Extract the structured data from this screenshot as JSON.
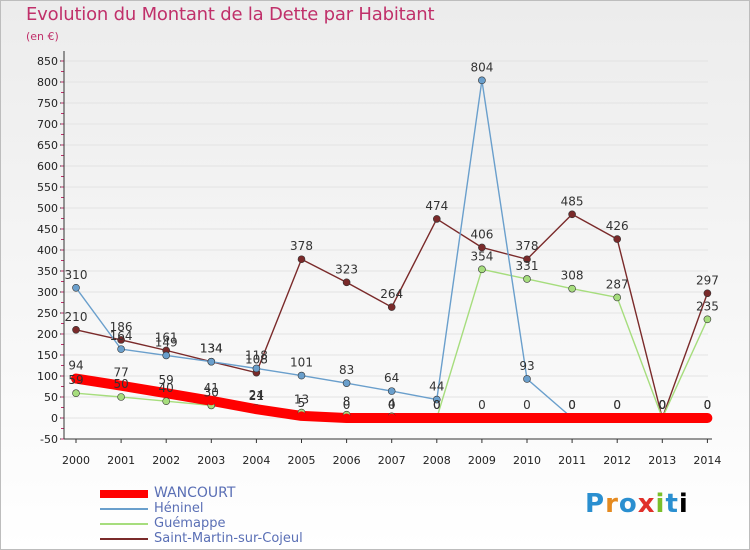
{
  "header": {
    "title": "Evolution du Montant de la Dette par Habitant",
    "unit": "(en €)"
  },
  "logo": {
    "letters": [
      "P",
      "r",
      "o",
      "x",
      "i",
      "t",
      "i"
    ]
  },
  "colors": {
    "title": "#c0306a",
    "WANCOURT": "#ff0000",
    "Héninel": "#6a9fcc",
    "Guémappe": "#a6dd7d",
    "Saint-Martin-sur-Cojeul": "#7a2a2a",
    "axis": "#333333",
    "grid": "#e3e3e3"
  },
  "chart_data": {
    "type": "line",
    "title": "Evolution du Montant de la Dette par Habitant",
    "subtitle": "(en €)",
    "xlabel": "",
    "ylabel": "",
    "ylim": [
      -50,
      850
    ],
    "ytick_step": 50,
    "x": [
      "2000",
      "2001",
      "2002",
      "2003",
      "2004",
      "2005",
      "2006",
      "2007",
      "2008",
      "2009",
      "2010",
      "2011",
      "2012",
      "2013",
      "2014"
    ],
    "legend_position": "bottom-left",
    "series": [
      {
        "name": "WANCOURT",
        "color": "#ff0000",
        "values": [
          94,
          77,
          59,
          41,
          21,
          5,
          0,
          0,
          0,
          0,
          0,
          0,
          0,
          0,
          0
        ],
        "labels": [
          "94",
          "77",
          "59",
          "41",
          "21",
          "5",
          "0",
          "0",
          "0",
          "0",
          "0",
          "0",
          "0",
          "0",
          "0"
        ]
      },
      {
        "name": "Héninel",
        "color": "#6a9fcc",
        "values": [
          310,
          164,
          149,
          134,
          118,
          101,
          83,
          64,
          44,
          804,
          93,
          0,
          0,
          0,
          0
        ],
        "labels": [
          "310",
          "164",
          "149",
          "134",
          "118",
          "101",
          "83",
          "64",
          "44",
          "804",
          "93",
          "0",
          "0",
          "0",
          "0"
        ]
      },
      {
        "name": "Guémappe",
        "color": "#a6dd7d",
        "values": [
          59,
          50,
          40,
          30,
          24,
          13,
          8,
          4,
          0,
          354,
          331,
          308,
          287,
          0,
          235
        ],
        "labels": [
          "59",
          "50",
          "40",
          "30",
          "24",
          "13",
          "8",
          "4",
          "0",
          "354",
          "331",
          "308",
          "287",
          "0",
          "235"
        ]
      },
      {
        "name": "Saint-Martin-sur-Cojeul",
        "color": "#7a2a2a",
        "values": [
          210,
          186,
          161,
          134,
          108,
          378,
          323,
          264,
          474,
          406,
          378,
          485,
          426,
          0,
          297
        ],
        "labels": [
          "210",
          "186",
          "161",
          "134",
          "108",
          "378",
          "323",
          "264",
          "474",
          "406",
          "378",
          "485",
          "426",
          "0",
          "297"
        ]
      }
    ]
  }
}
